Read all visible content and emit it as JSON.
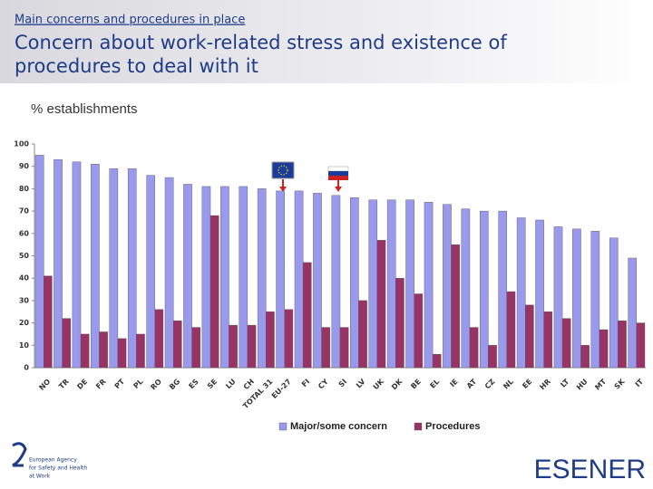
{
  "header": {
    "section": "Main concerns and procedures in place",
    "title_line1": "Concern about work-related stress and existence of",
    "title_line2": "procedures to deal with it"
  },
  "footer": {
    "agency_line1": "European Agency",
    "agency_line2": "for Safety and Health",
    "agency_line3": "at Work",
    "logo": "ESENER"
  },
  "chart_data": {
    "type": "bar",
    "y_label": "% establishments",
    "categories": [
      "NO",
      "TR",
      "DE",
      "FR",
      "PT",
      "PL",
      "RO",
      "BG",
      "ES",
      "SE",
      "LU",
      "CH",
      "TOTAL 31",
      "EU-27",
      "FI",
      "CY",
      "SI",
      "LV",
      "UK",
      "DK",
      "BE",
      "EL",
      "IE",
      "AT",
      "CZ",
      "NL",
      "EE",
      "HR",
      "LT",
      "HU",
      "MT",
      "SK",
      "IT"
    ],
    "series": [
      {
        "name": "Major/some concern",
        "color": "#9999ee",
        "values": [
          95,
          93,
          92,
          91,
          89,
          89,
          86,
          85,
          82,
          81,
          81,
          81,
          80,
          79,
          79,
          78,
          77,
          76,
          75,
          75,
          75,
          74,
          73,
          71,
          70,
          70,
          67,
          66,
          63,
          62,
          61,
          58,
          49
        ]
      },
      {
        "name": "Procedures",
        "color": "#993366",
        "values": [
          41,
          22,
          15,
          16,
          13,
          15,
          26,
          21,
          18,
          68,
          19,
          19,
          25,
          26,
          47,
          18,
          18,
          30,
          57,
          40,
          33,
          6,
          55,
          18,
          10,
          34,
          28,
          25,
          22,
          10,
          17,
          21,
          20
        ]
      }
    ],
    "ylim": [
      0,
      100
    ],
    "yticks": [
      0,
      10,
      20,
      30,
      40,
      50,
      60,
      70,
      80,
      90,
      100
    ],
    "grid": false,
    "legend": "bottom"
  }
}
